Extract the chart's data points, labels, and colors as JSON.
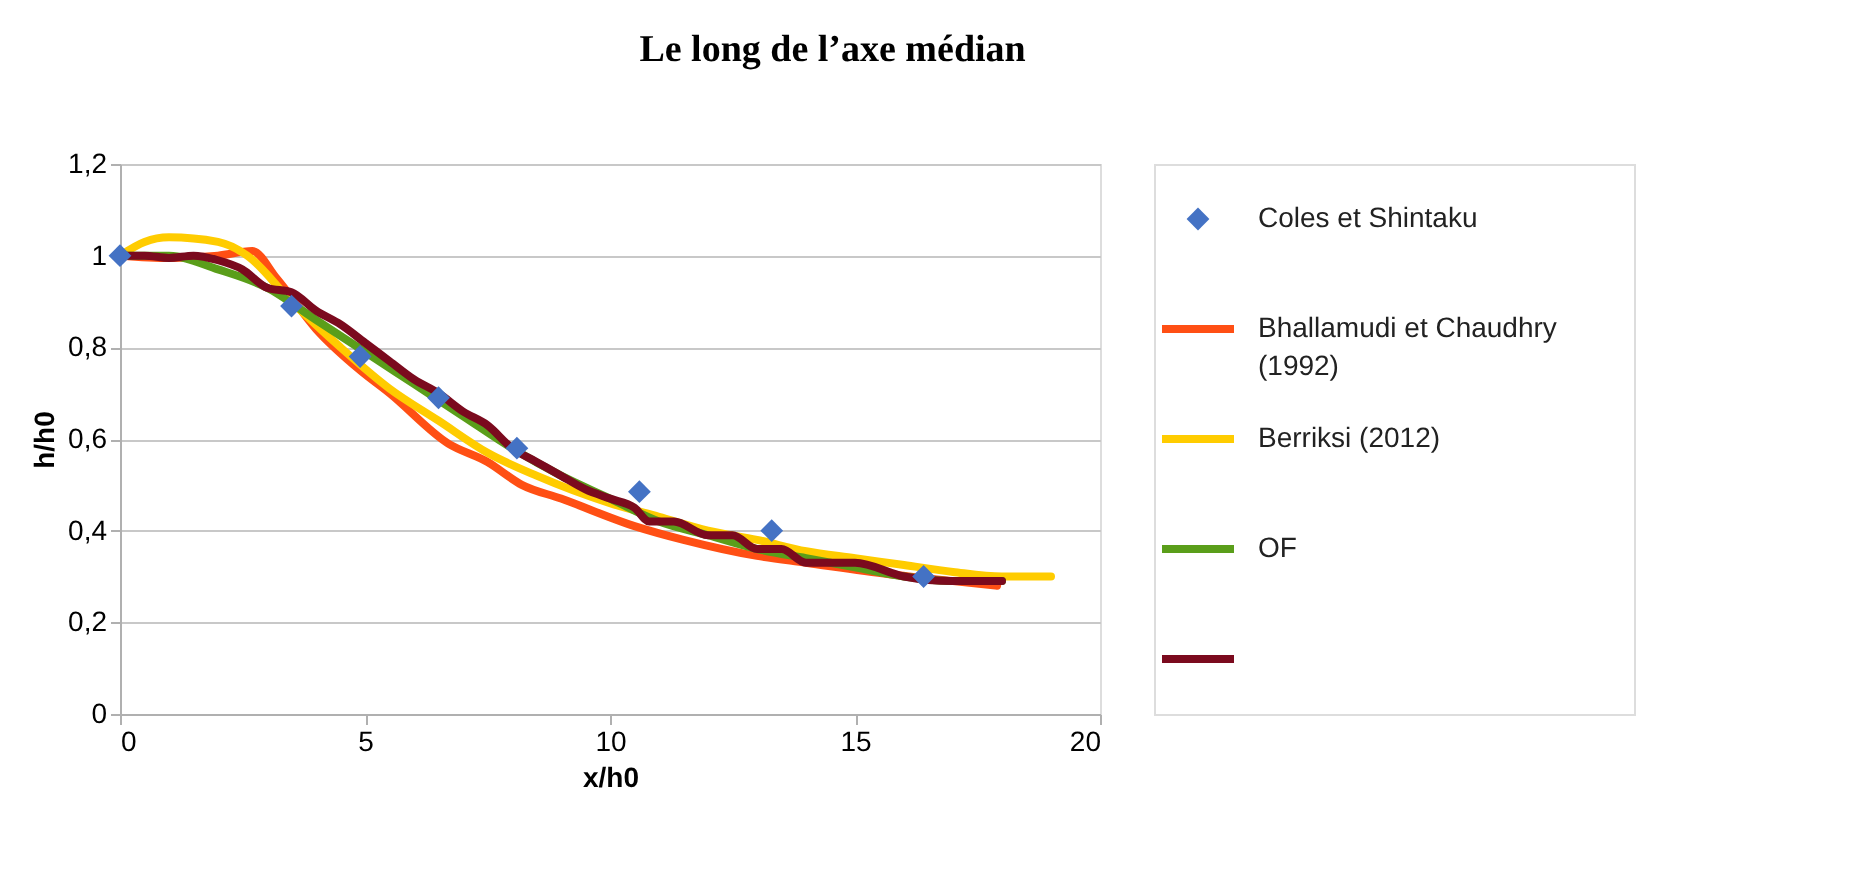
{
  "chart_data": {
    "type": "line",
    "title": "Le long de l’axe médian",
    "xlabel": "x/h0",
    "ylabel": "h/h0",
    "xlim": [
      0,
      20
    ],
    "xticks": [
      0,
      5,
      10,
      15,
      20
    ],
    "ylim": [
      0,
      1.2
    ],
    "yticks": [
      {
        "value": 0,
        "label": "0"
      },
      {
        "value": 0.2,
        "label": "0,2"
      },
      {
        "value": 0.4,
        "label": "0,4"
      },
      {
        "value": 0.6,
        "label": "0,6"
      },
      {
        "value": 0.8,
        "label": "0,8"
      },
      {
        "value": 1,
        "label": "1"
      },
      {
        "value": 1.2,
        "label": "1,2"
      }
    ],
    "grid": "y",
    "legend": "right",
    "series": [
      {
        "name": "Coles et Shintaku",
        "type": "scatter",
        "marker": "diamond",
        "color": "#4472c4",
        "x": [
          0,
          3.5,
          4.9,
          6.5,
          8.1,
          10.6,
          13.3,
          16.4
        ],
        "values": [
          1.0,
          0.89,
          0.78,
          0.69,
          0.58,
          0.485,
          0.4,
          0.3
        ]
      },
      {
        "name": "Bhallamudi et Chaudhry (1992)",
        "marker": "none",
        "color": "#ff4f14",
        "x": [
          0,
          1,
          2,
          2.7,
          3.2,
          4,
          4.9,
          5.5,
          6.7,
          7.5,
          8.2,
          9,
          10.5,
          11.5,
          13,
          14,
          15.7,
          17,
          17.9
        ],
        "values": [
          1.0,
          0.995,
          1.0,
          1.01,
          0.95,
          0.84,
          0.75,
          0.7,
          0.59,
          0.55,
          0.5,
          0.47,
          0.41,
          0.38,
          0.345,
          0.33,
          0.305,
          0.29,
          0.28
        ]
      },
      {
        "name": "Berriksi (2012)",
        "marker": "none",
        "color": "#ffcc00",
        "x": [
          0,
          0.5,
          1,
          2,
          2.6,
          3.5,
          4.5,
          5.5,
          6.5,
          7.5,
          8.5,
          10,
          11,
          12,
          13,
          14,
          15,
          16,
          17,
          18,
          19
        ],
        "values": [
          1.0,
          1.03,
          1.04,
          1.03,
          1.0,
          0.9,
          0.8,
          0.71,
          0.64,
          0.57,
          0.52,
          0.46,
          0.43,
          0.4,
          0.38,
          0.355,
          0.34,
          0.325,
          0.31,
          0.3,
          0.3
        ]
      },
      {
        "name": "OF",
        "marker": "none",
        "color": "#5a9e1a",
        "x": [
          0,
          1,
          2,
          3,
          4,
          5,
          6,
          7,
          8,
          9,
          10,
          11,
          12,
          13,
          14,
          15,
          16,
          17,
          18
        ],
        "values": [
          1.0,
          1.0,
          0.97,
          0.93,
          0.86,
          0.79,
          0.72,
          0.65,
          0.58,
          0.52,
          0.47,
          0.42,
          0.39,
          0.36,
          0.34,
          0.32,
          0.3,
          0.29,
          0.29
        ]
      },
      {
        "marker": "none",
        "color": "#7b0a1e",
        "x": [
          0,
          0.5,
          1,
          1.5,
          2,
          2.5,
          3,
          3.5,
          4,
          4.5,
          5,
          5.5,
          6,
          6.5,
          7,
          7.5,
          8,
          8.5,
          9,
          9.5,
          10,
          10.5,
          10.8,
          11.3,
          12,
          12.5,
          13,
          13.5,
          14,
          15,
          16,
          17,
          18
        ],
        "values": [
          1.0,
          1.0,
          0.995,
          1.0,
          0.99,
          0.97,
          0.93,
          0.92,
          0.88,
          0.85,
          0.81,
          0.77,
          0.73,
          0.7,
          0.66,
          0.63,
          0.58,
          0.55,
          0.52,
          0.49,
          0.47,
          0.45,
          0.42,
          0.42,
          0.39,
          0.39,
          0.36,
          0.36,
          0.33,
          0.33,
          0.3,
          0.29,
          0.29
        ]
      }
    ]
  }
}
